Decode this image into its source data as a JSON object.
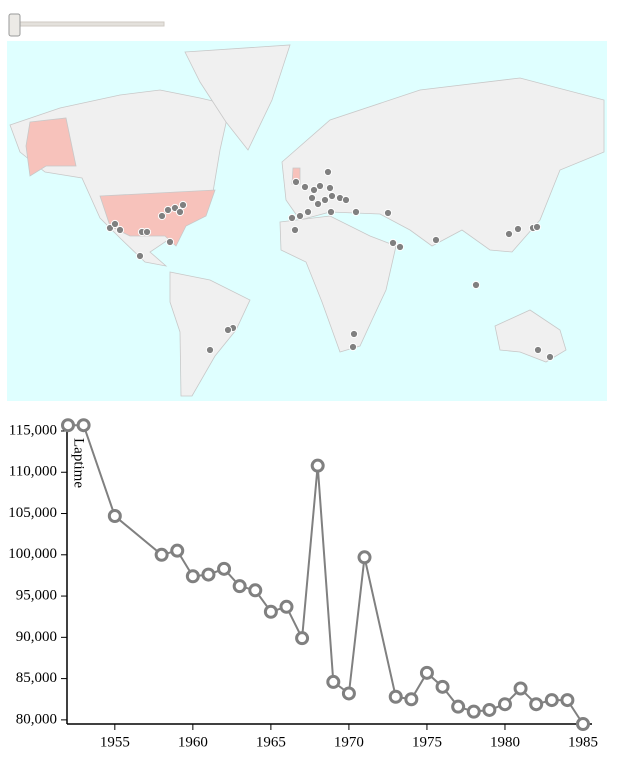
{
  "chart_data": {
    "type": "line",
    "y_label": "Laptime",
    "x": [
      1952,
      1953,
      1955,
      1958,
      1959,
      1960,
      1961,
      1962,
      1963,
      1964,
      1965,
      1966,
      1967,
      1968,
      1969,
      1970,
      1971,
      1973,
      1974,
      1975,
      1976,
      1977,
      1978,
      1979,
      1980,
      1981,
      1982,
      1983,
      1984,
      1985
    ],
    "series": [
      {
        "color": "#808080",
        "values": [
          115700,
          115700,
          104700,
          100000,
          100500,
          97400,
          97600,
          98300,
          96200,
          95700,
          93100,
          93700,
          89900,
          110800,
          84600,
          83200,
          99700,
          82800,
          82500,
          85700,
          84000,
          81600,
          81000,
          81200,
          81900,
          83800,
          81900,
          82400,
          82400,
          79500
        ]
      }
    ],
    "xlim": [
      1952,
      1985
    ],
    "xticks": [
      1955,
      1960,
      1965,
      1970,
      1975,
      1980,
      1985
    ],
    "ylim": [
      79500,
      116500
    ],
    "yticks": [
      {
        "value": 80000,
        "label": "80,000"
      },
      {
        "value": 85000,
        "label": "85,000"
      },
      {
        "value": 90000,
        "label": "90,000"
      },
      {
        "value": 95000,
        "label": "95,000"
      },
      {
        "value": 100000,
        "label": "100,000"
      },
      {
        "value": 105000,
        "label": "105,000"
      },
      {
        "value": 110000,
        "label": "110,000"
      },
      {
        "value": 115000,
        "label": "115,000"
      }
    ]
  }
}
